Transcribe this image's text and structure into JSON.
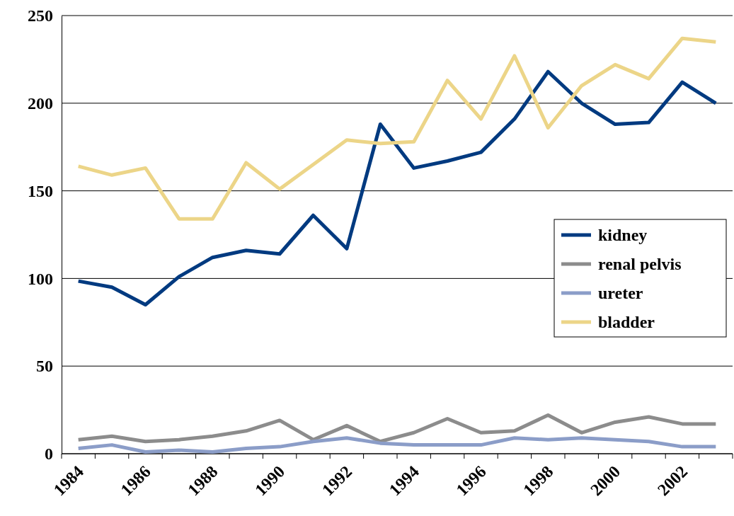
{
  "chart_data": {
    "type": "line",
    "categories": [
      "1984",
      null,
      "1986",
      null,
      "1988",
      null,
      "1990",
      null,
      "1992",
      null,
      "1994",
      null,
      "1996",
      null,
      "1998",
      null,
      "2000",
      null,
      "2002",
      null
    ],
    "ylim": [
      0,
      250
    ],
    "yticks": [
      0,
      50,
      100,
      150,
      200,
      250
    ],
    "grid": "y",
    "legend": "right",
    "line_style": "solid",
    "marker": "none",
    "series": [
      {
        "name": "kidney",
        "color": "#003a80",
        "values": [
          98.5,
          95,
          85,
          101,
          112,
          116,
          114,
          136,
          117,
          188,
          163,
          167,
          172,
          191,
          218,
          200,
          188,
          189,
          212,
          200
        ]
      },
      {
        "name": "renal pelvis",
        "color": "#8c8c8c",
        "values": [
          8,
          10,
          7,
          8,
          10,
          13,
          19,
          8,
          16,
          7,
          12,
          20,
          12,
          13,
          22,
          12,
          18,
          21,
          17,
          17
        ]
      },
      {
        "name": "ureter",
        "color": "#8b9dc8",
        "values": [
          3,
          5,
          1,
          2,
          1,
          3,
          4,
          7,
          9,
          6,
          5,
          5,
          5,
          9,
          8,
          9,
          8,
          7,
          4,
          4
        ]
      },
      {
        "name": "bladder",
        "color": "#ecd588",
        "values": [
          164,
          159,
          163,
          134,
          134,
          166,
          151,
          165,
          179,
          177,
          178,
          213,
          191,
          227,
          186,
          210,
          222,
          214,
          237,
          235
        ]
      }
    ]
  }
}
